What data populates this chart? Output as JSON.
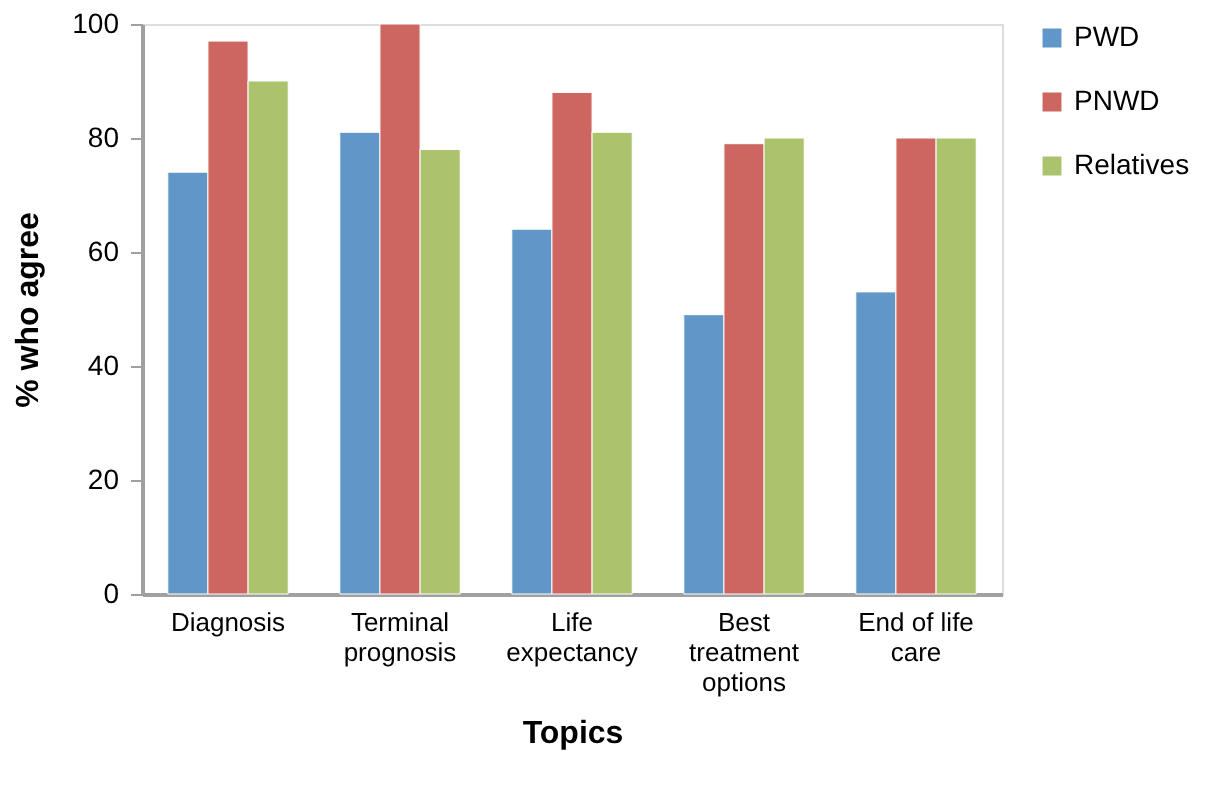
{
  "chart_data": {
    "type": "bar",
    "xlabel": "Topics",
    "ylabel": "% who agree",
    "categories": [
      "Diagnosis",
      "Terminal prognosis",
      "Life expectancy",
      "Best treatment options",
      "End of life care"
    ],
    "series": [
      {
        "name": "PWD",
        "color": "#6096c8",
        "values": [
          74,
          81,
          64,
          49,
          53
        ]
      },
      {
        "name": "PNWD",
        "color": "#cd6660",
        "values": [
          97,
          100,
          88,
          79,
          80
        ]
      },
      {
        "name": "Relatives",
        "color": "#aac36c",
        "values": [
          90,
          78,
          81,
          80,
          80
        ]
      }
    ],
    "ylim": [
      0,
      100
    ],
    "yticks": [
      0,
      20,
      40,
      60,
      80,
      100
    ],
    "grid": false,
    "legend": "right"
  }
}
